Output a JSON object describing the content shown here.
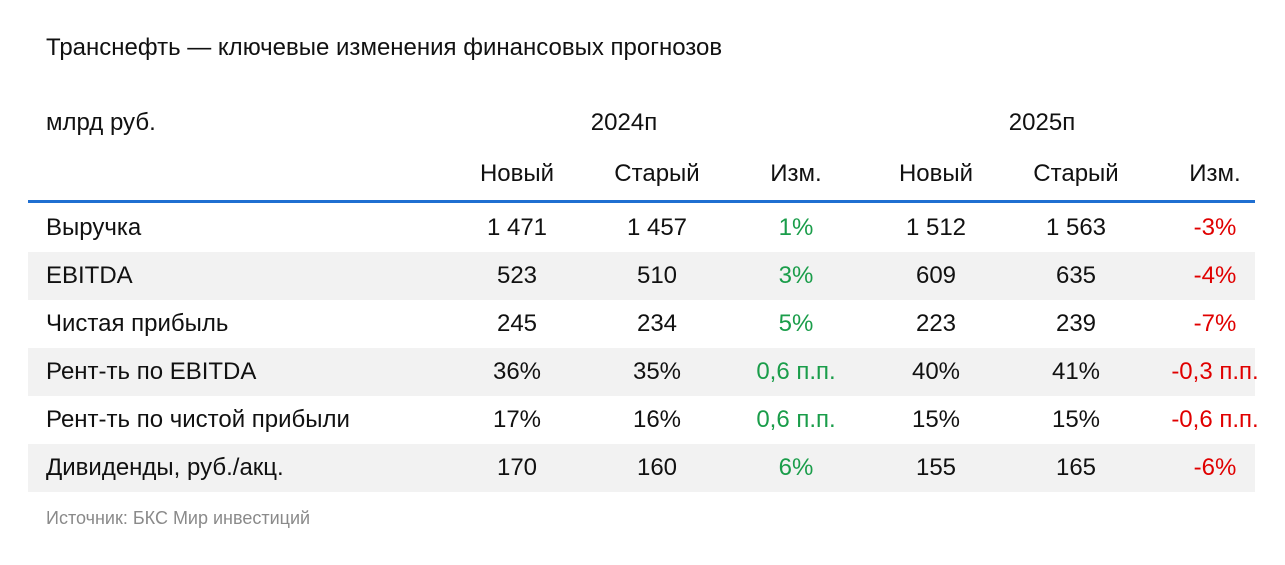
{
  "chart_data": {
    "type": "table",
    "title": "Транснефть — ключевые изменения финансовых прогнозов",
    "unit": "млрд руб.",
    "groups": [
      {
        "label": "2024п",
        "columns": [
          "Новый",
          "Старый",
          "Изм."
        ]
      },
      {
        "label": "2025п",
        "columns": [
          "Новый",
          "Старый",
          "Изм."
        ]
      }
    ],
    "rows": [
      {
        "label": "Выручка",
        "values": [
          "1 471",
          "1 457",
          "1%",
          "1 512",
          "1 563",
          "-3%"
        ]
      },
      {
        "label": "EBITDA",
        "values": [
          "523",
          "510",
          "3%",
          "609",
          "635",
          "-4%"
        ]
      },
      {
        "label": "Чистая прибыль",
        "values": [
          "245",
          "234",
          "5%",
          "223",
          "239",
          "-7%"
        ]
      },
      {
        "label": "Рент-ть по EBITDA",
        "values": [
          "36%",
          "35%",
          "0,6 п.п.",
          "40%",
          "41%",
          "-0,3 п.п."
        ]
      },
      {
        "label": "Рент-ть по чистой прибыли",
        "values": [
          "17%",
          "16%",
          "0,6 п.п.",
          "15%",
          "15%",
          "-0,6 п.п."
        ]
      },
      {
        "label": "Дивиденды, руб./акц.",
        "values": [
          "170",
          "160",
          "6%",
          "155",
          "165",
          "-6%"
        ]
      }
    ],
    "source": "Источник: БКС Мир инвестиций",
    "colors": {
      "positive_change": "#1a9d4a",
      "negative_change": "#e00000",
      "header_rule": "#1f6fd1",
      "row_shade": "#f2f2f2",
      "source_text": "#8a8a8a"
    }
  }
}
